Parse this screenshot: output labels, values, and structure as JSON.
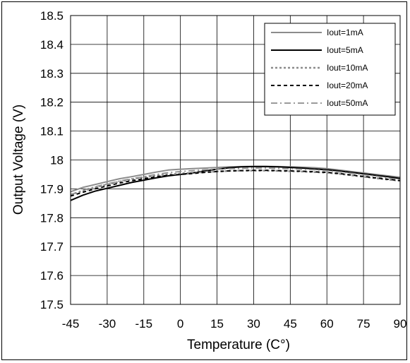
{
  "chart_data": {
    "type": "line",
    "xlabel": "Temperature (C°)",
    "ylabel": "Output Voltage (V)",
    "xlim": [
      -45,
      90
    ],
    "ylim": [
      17.5,
      18.5
    ],
    "x_ticks": [
      "-45",
      "-30",
      "-15",
      "0",
      "15",
      "30",
      "45",
      "60",
      "75",
      "90"
    ],
    "y_ticks": [
      "18.5",
      "18.4",
      "18.3",
      "18.2",
      "18.1",
      "18",
      "17.9",
      "17.8",
      "17.7",
      "17.6",
      "17.5"
    ],
    "grid": true,
    "legend_position": "top-right",
    "x": [
      -45,
      -40,
      -35,
      -30,
      -25,
      -20,
      -15,
      -10,
      -5,
      0,
      5,
      10,
      15,
      20,
      25,
      30,
      35,
      40,
      45,
      50,
      55,
      60,
      65,
      70,
      75,
      80,
      85,
      90
    ],
    "series": [
      {
        "name": "Iout=1mA",
        "color": "#8c8c8c",
        "dash": "solid",
        "values": [
          17.89,
          17.905,
          17.915,
          17.925,
          17.935,
          17.942,
          17.95,
          17.958,
          17.965,
          17.968,
          17.97,
          17.972,
          17.974,
          17.976,
          17.977,
          17.978,
          17.978,
          17.977,
          17.976,
          17.975,
          17.973,
          17.97,
          17.965,
          17.96,
          17.955,
          17.95,
          17.945,
          17.94
        ]
      },
      {
        "name": "Iout=5mA",
        "color": "#000000",
        "dash": "solid",
        "values": [
          17.86,
          17.878,
          17.892,
          17.902,
          17.912,
          17.922,
          17.93,
          17.938,
          17.945,
          17.95,
          17.955,
          17.962,
          17.968,
          17.973,
          17.976,
          17.977,
          17.977,
          17.976,
          17.974,
          17.972,
          17.969,
          17.966,
          17.962,
          17.957,
          17.952,
          17.947,
          17.942,
          17.936
        ]
      },
      {
        "name": "Iout=10mA",
        "color": "#8c8c8c",
        "dash": "dot",
        "values": [
          17.88,
          17.893,
          17.905,
          17.915,
          17.925,
          17.933,
          17.94,
          17.946,
          17.95,
          17.953,
          17.956,
          17.958,
          17.96,
          17.962,
          17.963,
          17.963,
          17.963,
          17.962,
          17.961,
          17.96,
          17.958,
          17.956,
          17.952,
          17.947,
          17.942,
          17.937,
          17.932,
          17.928
        ]
      },
      {
        "name": "Iout=20mA",
        "color": "#000000",
        "dash": "dash",
        "values": [
          17.875,
          17.888,
          17.9,
          17.91,
          17.92,
          17.928,
          17.935,
          17.942,
          17.947,
          17.95,
          17.953,
          17.957,
          17.96,
          17.962,
          17.963,
          17.964,
          17.964,
          17.963,
          17.962,
          17.961,
          17.959,
          17.957,
          17.953,
          17.948,
          17.943,
          17.938,
          17.933,
          17.929
        ]
      },
      {
        "name": "Iout=50mA",
        "color": "#8c8c8c",
        "dash": "dashdot",
        "values": [
          17.88,
          17.895,
          17.907,
          17.917,
          17.927,
          17.935,
          17.942,
          17.95,
          17.956,
          17.96,
          17.963,
          17.966,
          17.968,
          17.97,
          17.971,
          17.972,
          17.972,
          17.971,
          17.97,
          17.968,
          17.966,
          17.963,
          17.959,
          17.954,
          17.949,
          17.944,
          17.938,
          17.932
        ]
      }
    ]
  }
}
